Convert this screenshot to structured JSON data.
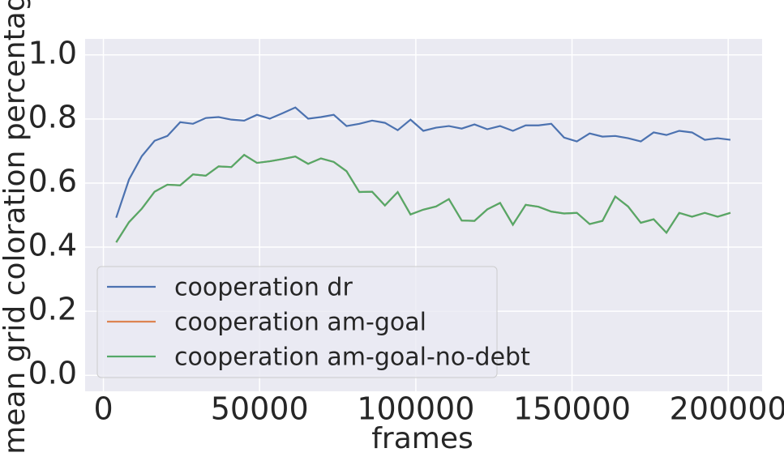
{
  "chart_data": {
    "type": "line",
    "x_label": "frames",
    "y_label": "mean grid coloration percentage",
    "x": [
      4096,
      8192,
      12288,
      16384,
      20480,
      24576,
      28672,
      32768,
      36864,
      40960,
      45056,
      49152,
      53248,
      57344,
      61440,
      65536,
      69632,
      73728,
      77824,
      81920,
      86016,
      90112,
      94208,
      98304,
      102400,
      106496,
      110592,
      114688,
      118784,
      122880,
      126976,
      131072,
      135168,
      139264,
      143360,
      147456,
      151552,
      155648,
      159744,
      163840,
      167936,
      172032,
      176128,
      180224,
      184320,
      188416,
      192512,
      196608,
      200704
    ],
    "series": [
      {
        "name": "cooperation dr",
        "color": "#4c72b0",
        "values": [
          0.492,
          0.611,
          0.684,
          0.732,
          0.747,
          0.79,
          0.785,
          0.803,
          0.806,
          0.798,
          0.795,
          0.813,
          0.801,
          0.818,
          0.836,
          0.801,
          0.806,
          0.813,
          0.778,
          0.785,
          0.795,
          0.788,
          0.765,
          0.798,
          0.763,
          0.773,
          0.778,
          0.77,
          0.783,
          0.768,
          0.778,
          0.763,
          0.78,
          0.78,
          0.785,
          0.742,
          0.73,
          0.755,
          0.745,
          0.747,
          0.74,
          0.73,
          0.758,
          0.75,
          0.763,
          0.758,
          0.735,
          0.74,
          0.735
        ]
      },
      {
        "name": "cooperation am-goal",
        "color": "#dd8452",
        "values": [
          0.415,
          0.478,
          0.52,
          0.573,
          0.595,
          0.593,
          0.627,
          0.623,
          0.652,
          0.65,
          0.688,
          0.663,
          0.668,
          0.675,
          0.683,
          0.66,
          0.677,
          0.666,
          0.637,
          0.572,
          0.573,
          0.53,
          0.572,
          0.502,
          0.517,
          0.527,
          0.55,
          0.483,
          0.482,
          0.518,
          0.538,
          0.47,
          0.532,
          0.526,
          0.511,
          0.505,
          0.507,
          0.472,
          0.482,
          0.558,
          0.527,
          0.476,
          0.487,
          0.445,
          0.507,
          0.495,
          0.507,
          0.495,
          0.507
        ]
      },
      {
        "name": "cooperation am-goal-no-debt",
        "color": "#55a868",
        "values": [
          0.415,
          0.478,
          0.52,
          0.573,
          0.595,
          0.593,
          0.627,
          0.623,
          0.652,
          0.65,
          0.688,
          0.663,
          0.668,
          0.675,
          0.683,
          0.66,
          0.677,
          0.666,
          0.637,
          0.572,
          0.573,
          0.53,
          0.572,
          0.502,
          0.517,
          0.527,
          0.55,
          0.483,
          0.482,
          0.518,
          0.538,
          0.47,
          0.532,
          0.526,
          0.511,
          0.505,
          0.507,
          0.472,
          0.482,
          0.558,
          0.527,
          0.476,
          0.487,
          0.445,
          0.507,
          0.495,
          0.507,
          0.495,
          0.507
        ]
      }
    ],
    "xlim": [
      -5850,
      210850
    ],
    "xticks": [
      0,
      50000,
      100000,
      150000,
      200000
    ],
    "ylim": [
      -0.05,
      1.05
    ],
    "yticks": [
      {
        "value": 0,
        "label": "0.0"
      },
      0.2,
      0.4,
      0.6,
      0.8,
      {
        "value": 1,
        "label": "1.0"
      }
    ],
    "grid": true,
    "legend_position": "lower left",
    "background": "#eaeaf2"
  }
}
